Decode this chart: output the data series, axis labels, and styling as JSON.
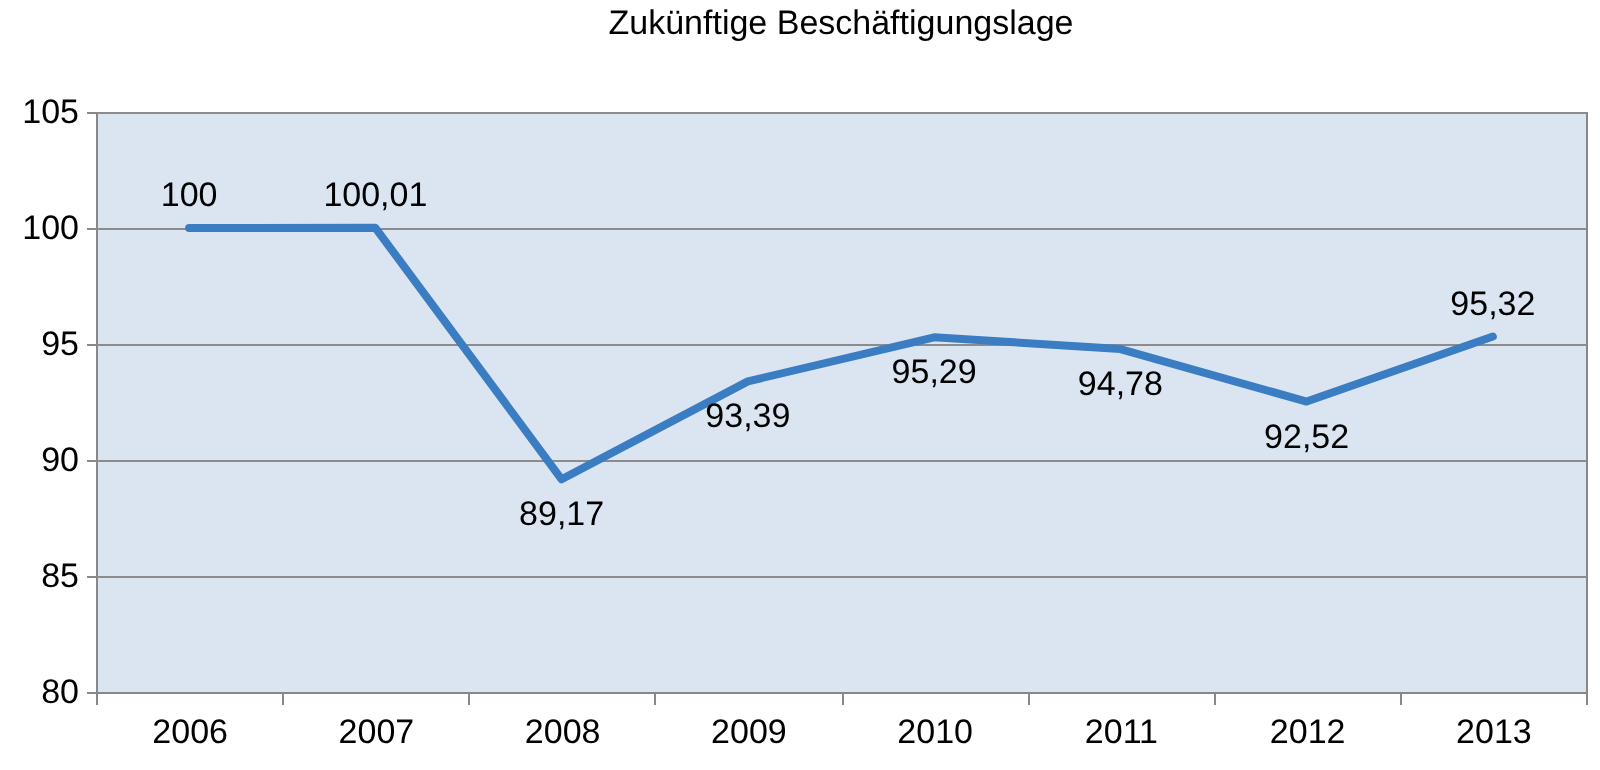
{
  "chart_data": {
    "type": "line",
    "title": "Zukünftige Beschäftigungslage",
    "categories": [
      "2006",
      "2007",
      "2008",
      "2009",
      "2010",
      "2011",
      "2012",
      "2013"
    ],
    "series": [
      {
        "color": "#3a7dc2",
        "values": [
          100,
          100.01,
          89.17,
          93.39,
          95.29,
          94.78,
          92.52,
          95.32
        ],
        "value_labels": [
          "100",
          "100,01",
          "89,17",
          "93,39",
          "95,29",
          "94,78",
          "92,52",
          "95,32"
        ]
      }
    ],
    "ylim": [
      80,
      105
    ],
    "yticks": [
      80,
      85,
      90,
      95,
      100,
      105
    ],
    "grid": "y",
    "marker": "none",
    "line_style": "solid"
  }
}
